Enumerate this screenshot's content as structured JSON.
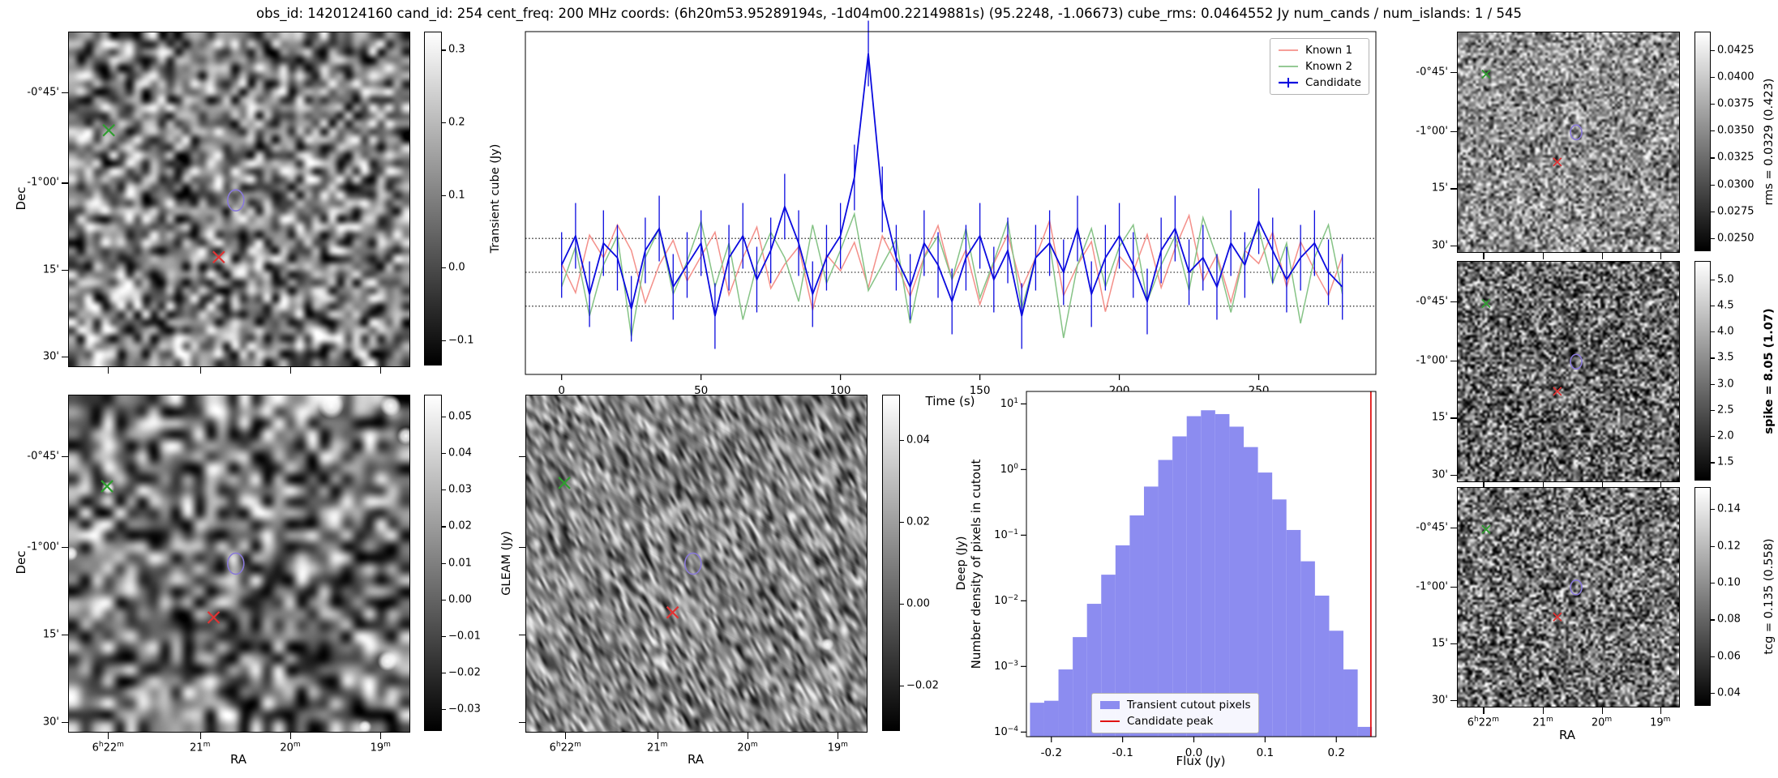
{
  "title": "obs_id: 1420124160 cand_id: 254 cent_freq: 200 MHz coords: (6h20m53.95289194s, -1d04m00.22149881s) (95.2248, -1.06673) cube_rms: 0.0464552 Jy num_cands / num_islands: 1 / 545",
  "axes": {
    "dec_label": "Dec",
    "ra_label": "RA",
    "dec_tick_labels": [
      "-0°45'",
      "-1°00'",
      "15'",
      "30'"
    ],
    "ra_tick_labels": [
      "6h22m",
      "21m",
      "20m",
      "19m"
    ]
  },
  "panels": {
    "transient": {
      "colorbar": {
        "label": "Transient cube (Jy)",
        "bold": false,
        "min": -0.135,
        "max": 0.325,
        "ticks": [
          {
            "label": "0.3",
            "v": 0.3
          },
          {
            "label": "0.2",
            "v": 0.2
          },
          {
            "label": "0.1",
            "v": 0.1
          },
          {
            "label": "0.0",
            "v": 0.0
          },
          {
            "label": "−0.1",
            "v": -0.1
          }
        ]
      },
      "markers": [
        {
          "shape": "x",
          "color": "#2f9e2f",
          "fx": 0.117,
          "fy": 0.293
        },
        {
          "shape": "x",
          "color": "#e03333",
          "fx": 0.44,
          "fy": 0.673
        },
        {
          "shape": "ellipse",
          "color": "#8878d8",
          "fx": 0.49,
          "fy": 0.503
        }
      ]
    },
    "gleam": {
      "colorbar": {
        "label": "GLEAM (Jy)",
        "bold": false,
        "min": -0.036,
        "max": 0.056,
        "ticks": [
          {
            "label": "0.05",
            "v": 0.05
          },
          {
            "label": "0.04",
            "v": 0.04
          },
          {
            "label": "0.03",
            "v": 0.03
          },
          {
            "label": "0.02",
            "v": 0.02
          },
          {
            "label": "0.01",
            "v": 0.01
          },
          {
            "label": "0.00",
            "v": 0.0
          },
          {
            "label": "−0.01",
            "v": -0.01
          },
          {
            "label": "−0.02",
            "v": -0.02
          },
          {
            "label": "−0.03",
            "v": -0.03
          }
        ]
      },
      "markers": [
        {
          "shape": "x",
          "color": "#2f9e2f",
          "fx": 0.112,
          "fy": 0.27
        },
        {
          "shape": "x",
          "color": "#e03333",
          "fx": 0.425,
          "fy": 0.66
        },
        {
          "shape": "ellipse",
          "color": "#8878d8",
          "fx": 0.49,
          "fy": 0.5
        }
      ]
    },
    "deep": {
      "colorbar": {
        "label": "Deep (Jy)",
        "bold": false,
        "min": -0.031,
        "max": 0.051,
        "ticks": [
          {
            "label": "0.04",
            "v": 0.04
          },
          {
            "label": "0.02",
            "v": 0.02
          },
          {
            "label": "0.00",
            "v": 0.0
          },
          {
            "label": "−0.02",
            "v": -0.02
          }
        ]
      },
      "markers": [
        {
          "shape": "x",
          "color": "#2f9e2f",
          "fx": 0.112,
          "fy": 0.26
        },
        {
          "shape": "x",
          "color": "#e03333",
          "fx": 0.43,
          "fy": 0.645
        },
        {
          "shape": "ellipse",
          "color": "#8878d8",
          "fx": 0.49,
          "fy": 0.5
        }
      ]
    },
    "rms": {
      "colorbar": {
        "label": "rms = 0.0329 (0.423)",
        "bold": false,
        "min": 0.0238,
        "max": 0.0442,
        "ticks": [
          {
            "label": "0.0425",
            "v": 0.0425
          },
          {
            "label": "0.0400",
            "v": 0.04
          },
          {
            "label": "0.0375",
            "v": 0.0375
          },
          {
            "label": "0.0350",
            "v": 0.035
          },
          {
            "label": "0.0325",
            "v": 0.0325
          },
          {
            "label": "0.0300",
            "v": 0.03
          },
          {
            "label": "0.0275",
            "v": 0.0275
          },
          {
            "label": "0.0250",
            "v": 0.025
          }
        ]
      },
      "markers": [
        {
          "shape": "x",
          "color": "#2f9e2f",
          "fx": 0.128,
          "fy": 0.19
        },
        {
          "shape": "x",
          "color": "#e03333",
          "fx": 0.45,
          "fy": 0.59
        },
        {
          "shape": "ellipse",
          "color": "#8878d8",
          "fx": 0.535,
          "fy": 0.455
        }
      ]
    },
    "spike": {
      "colorbar": {
        "label": "spike = 8.05 (1.07)",
        "bold": true,
        "min": 1.15,
        "max": 5.35,
        "ticks": [
          {
            "label": "5.0",
            "v": 5.0
          },
          {
            "label": "4.5",
            "v": 4.5
          },
          {
            "label": "4.0",
            "v": 4.0
          },
          {
            "label": "3.5",
            "v": 3.5
          },
          {
            "label": "3.0",
            "v": 3.0
          },
          {
            "label": "2.5",
            "v": 2.5
          },
          {
            "label": "2.0",
            "v": 2.0
          },
          {
            "label": "1.5",
            "v": 1.5
          }
        ]
      },
      "markers": [
        {
          "shape": "x",
          "color": "#2f9e2f",
          "fx": 0.128,
          "fy": 0.19
        },
        {
          "shape": "x",
          "color": "#e03333",
          "fx": 0.45,
          "fy": 0.59
        },
        {
          "shape": "ellipse",
          "color": "#8878d8",
          "fx": 0.535,
          "fy": 0.455
        }
      ]
    },
    "tcg": {
      "colorbar": {
        "label": "tcg = 0.135 (0.558)",
        "bold": false,
        "min": 0.033,
        "max": 0.152,
        "ticks": [
          {
            "label": "0.14",
            "v": 0.14
          },
          {
            "label": "0.12",
            "v": 0.12
          },
          {
            "label": "0.10",
            "v": 0.1
          },
          {
            "label": "0.08",
            "v": 0.08
          },
          {
            "label": "0.06",
            "v": 0.06
          },
          {
            "label": "0.04",
            "v": 0.04
          }
        ]
      },
      "markers": [
        {
          "shape": "x",
          "color": "#2f9e2f",
          "fx": 0.128,
          "fy": 0.19
        },
        {
          "shape": "x",
          "color": "#e03333",
          "fx": 0.45,
          "fy": 0.59
        },
        {
          "shape": "ellipse",
          "color": "#8878d8",
          "fx": 0.535,
          "fy": 0.455
        }
      ]
    }
  },
  "chart_data": [
    {
      "type": "line",
      "title": "",
      "xlabel": "Time (s)",
      "ylabel": "",
      "x_start": 0,
      "x_step": 5,
      "xlim": [
        -13,
        292
      ],
      "ylim": [
        -0.14,
        0.33
      ],
      "xticks": [
        0,
        50,
        100,
        150,
        200,
        250
      ],
      "hlines": [
        0.0465,
        0.0,
        -0.0465
      ],
      "legend_position": "upper right",
      "series": [
        {
          "name": "Known 1",
          "color": "#f4908a",
          "values": [
            0.012,
            -0.028,
            0.051,
            0.02,
            0.065,
            0.03,
            -0.042,
            0.01,
            0.044,
            -0.012,
            0.022,
            0.055,
            -0.031,
            0.02,
            0.062,
            -0.022,
            0.011,
            0.035,
            -0.052,
            0.024,
            0.002,
            0.041,
            -0.021,
            0.05,
            0.012,
            -0.033,
            0.021,
            0.064,
            -0.01,
            0.031,
            -0.044,
            0.012,
            0.052,
            -0.022,
            0.02,
            0.071,
            -0.032,
            0.01,
            0.042,
            -0.054,
            0.022,
            0.001,
            0.052,
            -0.021,
            0.033,
            0.078,
            -0.012,
            0.024,
            -0.041,
            0.03,
            0.012,
            0.055,
            -0.02,
            0.042,
            0.003,
            -0.032,
            0.022
          ]
        },
        {
          "name": "Known 2",
          "color": "#86c386",
          "values": [
            -0.02,
            0.035,
            -0.06,
            0.01,
            0.05,
            -0.088,
            0.02,
            0.06,
            -0.03,
            0.015,
            0.07,
            -0.02,
            0.04,
            -0.065,
            0.01,
            0.055,
            0.02,
            -0.04,
            0.065,
            -0.015,
            0.03,
            0.08,
            -0.025,
            0.01,
            0.045,
            -0.07,
            0.02,
            0.05,
            -0.01,
            0.06,
            -0.035,
            0.015,
            0.07,
            -0.05,
            0.02,
            0.04,
            -0.09,
            0.01,
            0.06,
            -0.02,
            0.035,
            0.065,
            -0.04,
            0.01,
            0.05,
            -0.025,
            0.075,
            0.02,
            -0.055,
            0.03,
            0.06,
            -0.015,
            0.04,
            -0.07,
            0.02,
            0.065,
            -0.03
          ]
        },
        {
          "name": "Candidate",
          "color": "#0b0bdf",
          "yerr": 0.045,
          "values": [
            0.01,
            0.05,
            -0.03,
            0.04,
            0.02,
            -0.05,
            0.03,
            0.06,
            -0.02,
            0.01,
            0.04,
            -0.06,
            0.02,
            0.05,
            -0.01,
            0.03,
            0.09,
            0.04,
            -0.03,
            0.02,
            0.05,
            0.13,
            0.3,
            0.1,
            0.02,
            -0.02,
            0.04,
            0.01,
            -0.04,
            0.02,
            0.05,
            -0.01,
            0.03,
            -0.06,
            0.02,
            0.04,
            0.0,
            0.06,
            -0.03,
            0.02,
            0.05,
            0.01,
            -0.04,
            0.03,
            0.06,
            0.0,
            0.02,
            -0.02,
            0.04,
            0.01,
            0.07,
            0.03,
            -0.01,
            0.02,
            0.04,
            0.0,
            -0.02
          ]
        }
      ]
    },
    {
      "type": "bar",
      "title": "",
      "xlabel": "Flux (Jy)",
      "ylabel": "Number density of pixels in cutout",
      "yscale": "log",
      "xlim": [
        -0.235,
        0.2555
      ],
      "ylog_top_exp": 1.19,
      "ylog_bottom_exp": -4.07,
      "xticks": [
        -0.2,
        -0.1,
        0.0,
        0.1,
        0.2
      ],
      "ytick_exponents": [
        1,
        0,
        -1,
        -2,
        -3,
        -4
      ],
      "bin_start": -0.23,
      "bin_width": 0.02,
      "densities": [
        0.00028,
        0.0003,
        0.0009,
        0.0028,
        0.009,
        0.025,
        0.07,
        0.2,
        0.55,
        1.4,
        3.2,
        6.5,
        8.0,
        7.0,
        4.5,
        2.2,
        0.9,
        0.35,
        0.12,
        0.04,
        0.012,
        0.0035,
        0.0009,
        0.00012
      ],
      "candidate_peak": 0.2485,
      "bar_color": "#8c8cf0",
      "line_color": "#e01212",
      "legend": [
        {
          "label": "Transient cutout pixels",
          "type": "patch"
        },
        {
          "label": "Candidate peak",
          "type": "line"
        }
      ]
    }
  ]
}
